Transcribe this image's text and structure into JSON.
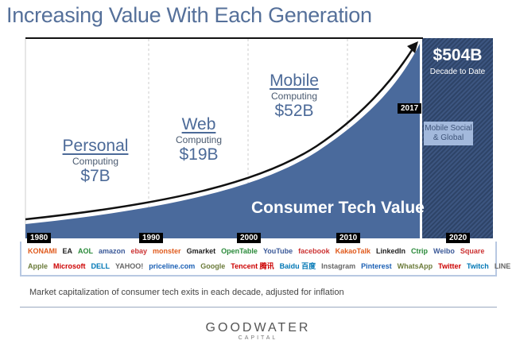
{
  "title": "Increasing Value With Each Generation",
  "generations": [
    {
      "name": "Personal",
      "sub": "Computing",
      "value": "$7B"
    },
    {
      "name": "Web",
      "sub": "Computing",
      "value": "$19B"
    },
    {
      "name": "Mobile",
      "sub": "Computing",
      "value": "$52B"
    }
  ],
  "future": {
    "value": "$504B",
    "sub": "Decade to Date",
    "tag": "Mobile Social & Global"
  },
  "area_label": "Consumer Tech Value",
  "years": [
    "1980",
    "1990",
    "2000",
    "2010",
    "2020"
  ],
  "current_year": "2017",
  "logos_row1": [
    "KONAMI",
    "EA",
    "AOL",
    "amazon",
    "ebay",
    "monster",
    "Gmarket",
    "OpenTable",
    "YouTube",
    "facebook",
    "KakaoTalk",
    "LinkedIn",
    "Ctrip",
    "Weibo",
    "Square"
  ],
  "logos_row2": [
    "Apple",
    "Microsoft",
    "DELL",
    "YAHOO!",
    "priceline.com",
    "Google",
    "Tencent 腾讯",
    "Baidu 百度",
    "Instagram",
    "Pinterest",
    "WhatsApp",
    "Twitter",
    "Twitch",
    "LINE"
  ],
  "caption": "Market capitalization of consumer tech exits in each decade, adjusted for inflation",
  "brand": {
    "name": "GOODWATER",
    "sub": "CAPITAL"
  },
  "colors": {
    "area": "#4a6a9c",
    "future": "#34496e",
    "title": "#55709a"
  }
}
